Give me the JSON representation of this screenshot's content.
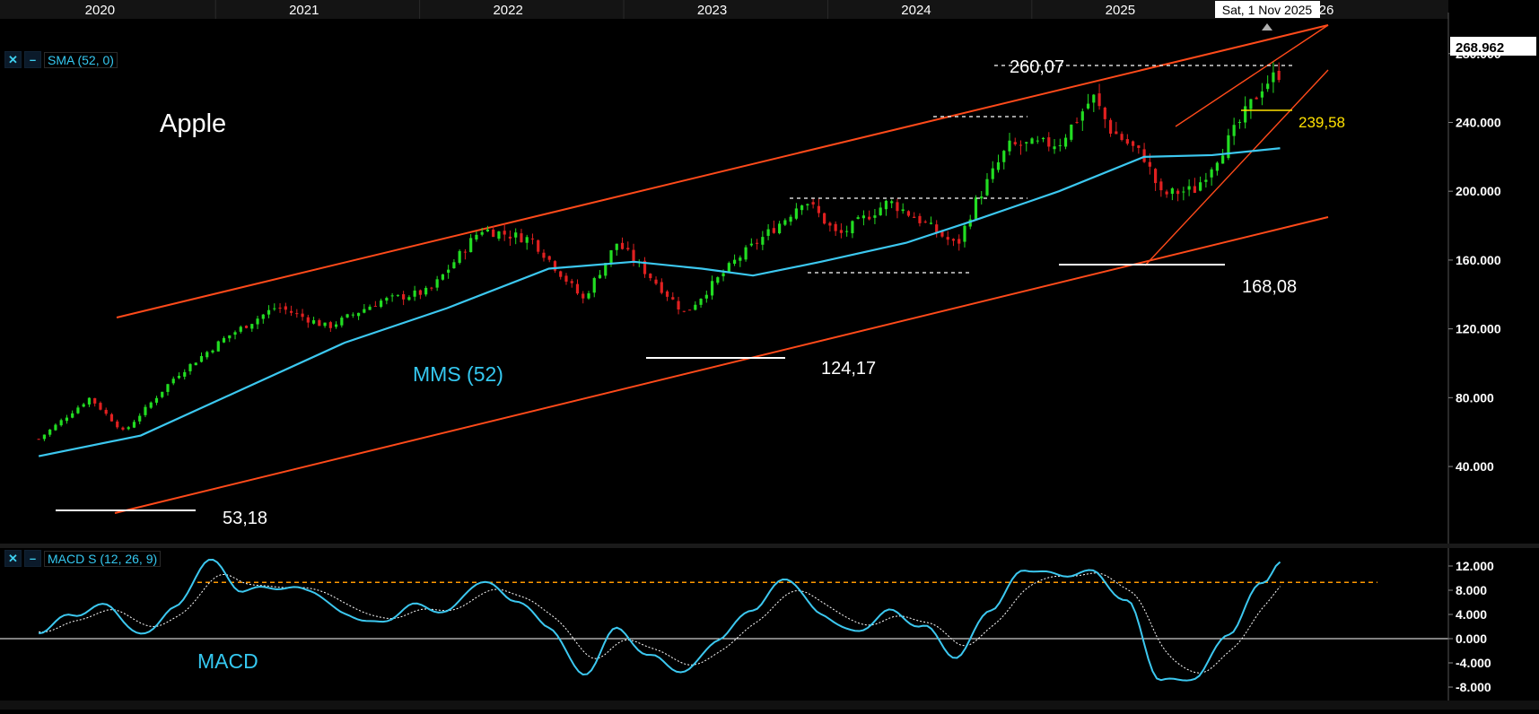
{
  "header": {
    "years": [
      "2020",
      "2021",
      "2022",
      "2023",
      "2024",
      "2025",
      "26"
    ],
    "crosshair_date": "Sat, 1 Nov 2025"
  },
  "price_panel": {
    "indicator_label": "SMA (52, 0)",
    "title": "Apple",
    "sma_label": "MMS (52)",
    "last_price": "268.962",
    "y_ticks": [
      "280.000",
      "240.000",
      "200.000",
      "160.000",
      "120.000",
      "80.000",
      "40.000"
    ],
    "annotations": {
      "high_2024": "260,07",
      "support_2025": "239,58",
      "low_2025": "168,08",
      "low_2022": "124,17",
      "low_2020": "53,18"
    }
  },
  "macd_panel": {
    "indicator_label": "MACD S (12, 26, 9)",
    "title": "MACD",
    "y_ticks": [
      "12.000",
      "8.000",
      "4.000",
      "0.000",
      "-4.000",
      "-8.000"
    ]
  },
  "colors": {
    "up": "#22dd22",
    "down": "#e02020",
    "channel": "#ff4a1a",
    "sma": "#3cc8f0",
    "macd": "#3cc8f0",
    "signal": "#ffffff",
    "threshold": "#ff9900",
    "support_label": "#ffe100"
  },
  "chart_data": [
    {
      "type": "candlestick",
      "title": "Apple",
      "x_range": [
        "2019-10",
        "2025-11"
      ],
      "ylim": [
        40,
        280
      ],
      "grid": false,
      "close_path": [
        {
          "x": "2019-10",
          "y": 56
        },
        {
          "x": "2020-01",
          "y": 80
        },
        {
          "x": "2020-03",
          "y": 60
        },
        {
          "x": "2020-06",
          "y": 92
        },
        {
          "x": "2020-09",
          "y": 115
        },
        {
          "x": "2020-12",
          "y": 133
        },
        {
          "x": "2021-03",
          "y": 121
        },
        {
          "x": "2021-06",
          "y": 136
        },
        {
          "x": "2021-09",
          "y": 142
        },
        {
          "x": "2021-12",
          "y": 178
        },
        {
          "x": "2022-03",
          "y": 172
        },
        {
          "x": "2022-06",
          "y": 137
        },
        {
          "x": "2022-08",
          "y": 170
        },
        {
          "x": "2022-10",
          "y": 150
        },
        {
          "x": "2022-12",
          "y": 129
        },
        {
          "x": "2023-03",
          "y": 160
        },
        {
          "x": "2023-06",
          "y": 185
        },
        {
          "x": "2023-07",
          "y": 196
        },
        {
          "x": "2023-09",
          "y": 174
        },
        {
          "x": "2023-12",
          "y": 194
        },
        {
          "x": "2024-02",
          "y": 182
        },
        {
          "x": "2024-04",
          "y": 168
        },
        {
          "x": "2024-05",
          "y": 192
        },
        {
          "x": "2024-07",
          "y": 226
        },
        {
          "x": "2024-10",
          "y": 228
        },
        {
          "x": "2024-12",
          "y": 255
        },
        {
          "x": "2025-01",
          "y": 236
        },
        {
          "x": "2025-03",
          "y": 220
        },
        {
          "x": "2025-04",
          "y": 198
        },
        {
          "x": "2025-06",
          "y": 201
        },
        {
          "x": "2025-08",
          "y": 230
        },
        {
          "x": "2025-10",
          "y": 262
        },
        {
          "x": "2025-11",
          "y": 269
        }
      ],
      "series": [
        {
          "name": "MMS (52)",
          "values": [
            {
              "x": "2019-10",
              "y": 46
            },
            {
              "x": "2020-04",
              "y": 58
            },
            {
              "x": "2020-10",
              "y": 85
            },
            {
              "x": "2021-04",
              "y": 112
            },
            {
              "x": "2021-10",
              "y": 132
            },
            {
              "x": "2022-04",
              "y": 155
            },
            {
              "x": "2022-09",
              "y": 159
            },
            {
              "x": "2023-01",
              "y": 155
            },
            {
              "x": "2023-04",
              "y": 151
            },
            {
              "x": "2023-08",
              "y": 159
            },
            {
              "x": "2024-01",
              "y": 170
            },
            {
              "x": "2024-05",
              "y": 183
            },
            {
              "x": "2024-10",
              "y": 200
            },
            {
              "x": "2025-03",
              "y": 220
            },
            {
              "x": "2025-07",
              "y": 221
            },
            {
              "x": "2025-11",
              "y": 225
            }
          ]
        }
      ],
      "levels": [
        {
          "label": "260,07",
          "value": 260.07
        },
        {
          "label": "239,58",
          "value": 239.58
        },
        {
          "label": "168,08",
          "value": 168.08
        },
        {
          "label": "124,17",
          "value": 124.17
        },
        {
          "label": "53,18",
          "value": 53.18
        }
      ]
    },
    {
      "type": "line",
      "title": "MACD",
      "ylim": [
        -8.5,
        13.5
      ],
      "threshold": 9.3,
      "series": [
        {
          "name": "MACD S (12, 26, 9)",
          "values": [
            {
              "x": "2019-10",
              "y": 1.2
            },
            {
              "x": "2019-12",
              "y": 4.0
            },
            {
              "x": "2020-02",
              "y": 5.5
            },
            {
              "x": "2020-04",
              "y": 0.5
            },
            {
              "x": "2020-06",
              "y": 5.0
            },
            {
              "x": "2020-08",
              "y": 13.0
            },
            {
              "x": "2020-10",
              "y": 8.0
            },
            {
              "x": "2020-12",
              "y": 8.5
            },
            {
              "x": "2021-02",
              "y": 8.0
            },
            {
              "x": "2021-04",
              "y": 4.0
            },
            {
              "x": "2021-06",
              "y": 2.5
            },
            {
              "x": "2021-08",
              "y": 5.5
            },
            {
              "x": "2021-10",
              "y": 4.5
            },
            {
              "x": "2021-12",
              "y": 9.5
            },
            {
              "x": "2022-02",
              "y": 6.5
            },
            {
              "x": "2022-04",
              "y": 2.0
            },
            {
              "x": "2022-06",
              "y": -6.0
            },
            {
              "x": "2022-08",
              "y": 1.5
            },
            {
              "x": "2022-10",
              "y": -3.0
            },
            {
              "x": "2022-12",
              "y": -5.5
            },
            {
              "x": "2023-02",
              "y": 0.0
            },
            {
              "x": "2023-04",
              "y": 5.0
            },
            {
              "x": "2023-06",
              "y": 10.0
            },
            {
              "x": "2023-08",
              "y": 4.0
            },
            {
              "x": "2023-10",
              "y": 1.0
            },
            {
              "x": "2023-12",
              "y": 4.5
            },
            {
              "x": "2024-02",
              "y": 2.0
            },
            {
              "x": "2024-04",
              "y": -3.0
            },
            {
              "x": "2024-06",
              "y": 5.0
            },
            {
              "x": "2024-08",
              "y": 11.5
            },
            {
              "x": "2024-10",
              "y": 10.5
            },
            {
              "x": "2024-12",
              "y": 11.0
            },
            {
              "x": "2025-02",
              "y": 6.0
            },
            {
              "x": "2025-04",
              "y": -7.0
            },
            {
              "x": "2025-06",
              "y": -6.5
            },
            {
              "x": "2025-08",
              "y": 1.0
            },
            {
              "x": "2025-10",
              "y": 9.5
            },
            {
              "x": "2025-11",
              "y": 12.5
            }
          ]
        }
      ]
    }
  ]
}
